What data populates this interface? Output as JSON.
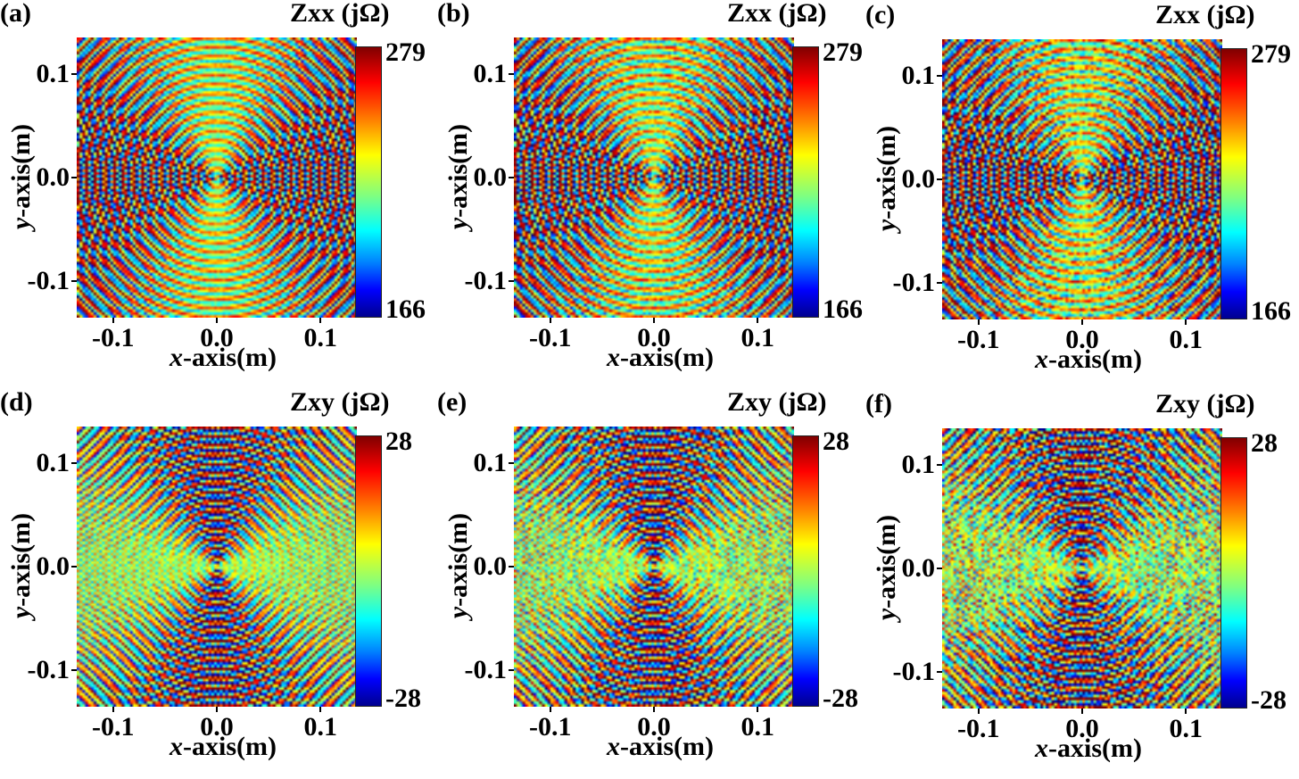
{
  "chart_data": [
    {
      "panel_label": "(a)",
      "type": "heatmap",
      "colorbar_title": "Zxx (jΩ)",
      "colorbar_range": [
        166,
        279
      ],
      "colorbar_max_label": "279",
      "colorbar_min_label": "166",
      "pattern": "xx",
      "variant": 0,
      "xlabel_italic": "x",
      "xlabel_rest": "-axis(m)",
      "ylabel_italic": "y",
      "ylabel_rest": "-axis(m)",
      "xlim": [
        -0.135,
        0.135
      ],
      "ylim": [
        -0.135,
        0.135
      ],
      "xticks": [
        "-0.1",
        "0.0",
        "0.1"
      ],
      "yticks": [
        "0.1",
        "0.0",
        "-0.1"
      ],
      "colormap": "jet"
    },
    {
      "panel_label": "(b)",
      "type": "heatmap",
      "colorbar_title": "Zxx (jΩ)",
      "colorbar_range": [
        166,
        279
      ],
      "colorbar_max_label": "279",
      "colorbar_min_label": "166",
      "pattern": "xx",
      "variant": 1,
      "xlabel_italic": "x",
      "xlabel_rest": "-axis(m)",
      "ylabel_italic": "y",
      "ylabel_rest": "-axis(m)",
      "xlim": [
        -0.135,
        0.135
      ],
      "ylim": [
        -0.135,
        0.135
      ],
      "xticks": [
        "-0.1",
        "0.0",
        "0.1"
      ],
      "yticks": [
        "0.1",
        "0.0",
        "-0.1"
      ],
      "colormap": "jet"
    },
    {
      "panel_label": "(c)",
      "type": "heatmap",
      "colorbar_title": "Zxx (jΩ)",
      "colorbar_range": [
        166,
        279
      ],
      "colorbar_max_label": "279",
      "colorbar_min_label": "166",
      "pattern": "xx",
      "variant": 2,
      "xlabel_italic": "x",
      "xlabel_rest": "-axis(m)",
      "ylabel_italic": "y",
      "ylabel_rest": "-axis(m)",
      "xlim": [
        -0.135,
        0.135
      ],
      "ylim": [
        -0.135,
        0.135
      ],
      "xticks": [
        "-0.1",
        "0.0",
        "0.1"
      ],
      "yticks": [
        "0.1",
        "0.0",
        "-0.1"
      ],
      "colormap": "jet"
    },
    {
      "panel_label": "(d)",
      "type": "heatmap",
      "colorbar_title": "Zxy (jΩ)",
      "colorbar_range": [
        -28,
        28
      ],
      "colorbar_max_label": "28",
      "colorbar_min_label": "-28",
      "pattern": "xy",
      "variant": 0,
      "xlabel_italic": "x",
      "xlabel_rest": "-axis(m)",
      "ylabel_italic": "y",
      "ylabel_rest": "-axis(m)",
      "xlim": [
        -0.135,
        0.135
      ],
      "ylim": [
        -0.135,
        0.135
      ],
      "xticks": [
        "-0.1",
        "0.0",
        "0.1"
      ],
      "yticks": [
        "0.1",
        "0.0",
        "-0.1"
      ],
      "colormap": "jet"
    },
    {
      "panel_label": "(e)",
      "type": "heatmap",
      "colorbar_title": "Zxy (jΩ)",
      "colorbar_range": [
        -28,
        28
      ],
      "colorbar_max_label": "28",
      "colorbar_min_label": "-28",
      "pattern": "xy",
      "variant": 1,
      "xlabel_italic": "x",
      "xlabel_rest": "-axis(m)",
      "ylabel_italic": "y",
      "ylabel_rest": "-axis(m)",
      "xlim": [
        -0.135,
        0.135
      ],
      "ylim": [
        -0.135,
        0.135
      ],
      "xticks": [
        "-0.1",
        "0.0",
        "0.1"
      ],
      "yticks": [
        "0.1",
        "0.0",
        "-0.1"
      ],
      "colormap": "jet"
    },
    {
      "panel_label": "(f)",
      "type": "heatmap",
      "colorbar_title": "Zxy (jΩ)",
      "colorbar_range": [
        -28,
        28
      ],
      "colorbar_max_label": "28",
      "colorbar_min_label": "-28",
      "pattern": "xy",
      "variant": 2,
      "xlabel_italic": "x",
      "xlabel_rest": "-axis(m)",
      "ylabel_italic": "y",
      "ylabel_rest": "-axis(m)",
      "xlim": [
        -0.135,
        0.135
      ],
      "ylim": [
        -0.135,
        0.135
      ],
      "xticks": [
        "-0.1",
        "0.0",
        "0.1"
      ],
      "yticks": [
        "0.1",
        "0.0",
        "-0.1"
      ],
      "colormap": "jet"
    }
  ]
}
